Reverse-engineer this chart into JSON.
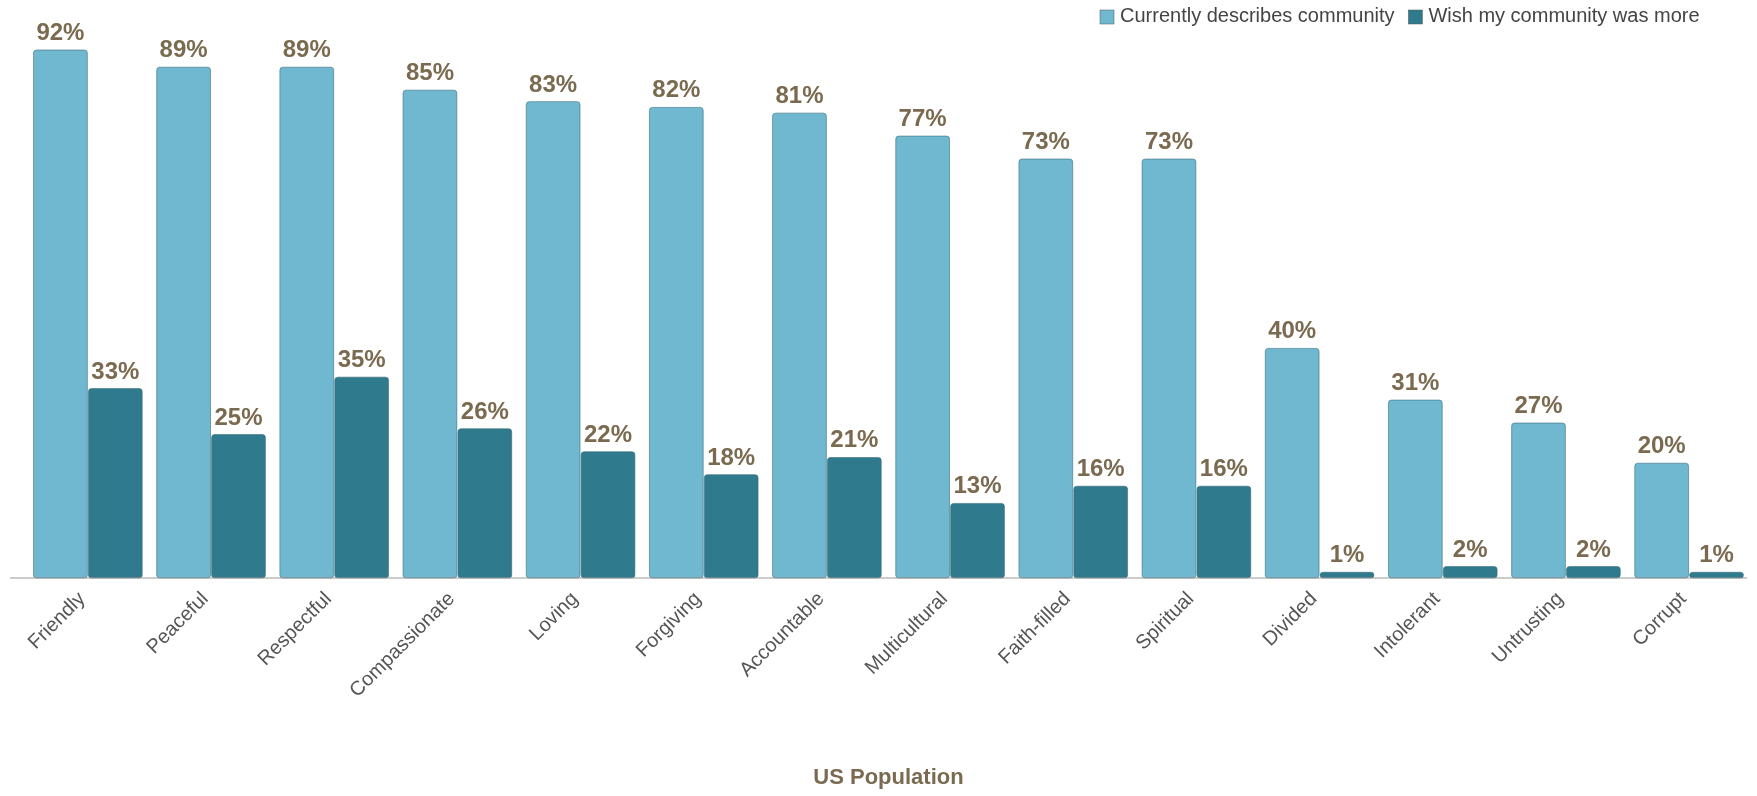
{
  "chart_data": {
    "type": "bar",
    "xlabel": "US Population",
    "categories": [
      "Friendly",
      "Peaceful",
      "Respectful",
      "Compassionate",
      "Loving",
      "Forgiving",
      "Accountable",
      "Multicultural",
      "Faith-filled",
      "Spiritual",
      "Divided",
      "Intolerant",
      "Untrusting",
      "Corrupt"
    ],
    "series": [
      {
        "name": "Currently describes community",
        "color": "#6fb8d0",
        "values": [
          92,
          89,
          89,
          85,
          83,
          82,
          81,
          77,
          73,
          73,
          40,
          31,
          27,
          20
        ],
        "value_labels": [
          "92%",
          "89%",
          "89%",
          "85%",
          "83%",
          "82%",
          "81%",
          "77%",
          "73%",
          "73%",
          "40%",
          "31%",
          "27%",
          "20%"
        ]
      },
      {
        "name": "Wish my community was more",
        "color": "#2f7a8c",
        "values": [
          33,
          25,
          35,
          26,
          22,
          18,
          21,
          13,
          16,
          16,
          1,
          2,
          2,
          1
        ],
        "value_labels": [
          "33%",
          "25%",
          "35%",
          "26%",
          "22%",
          "18%",
          "21%",
          "13%",
          "16%",
          "16%",
          "1%",
          "2%",
          "2%",
          "1%"
        ]
      }
    ],
    "legend": "top"
  }
}
